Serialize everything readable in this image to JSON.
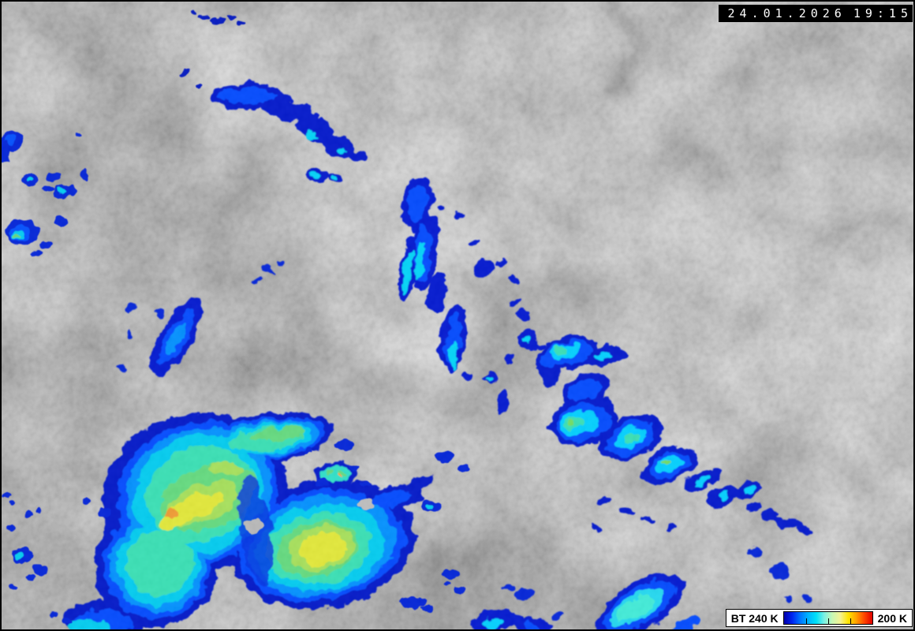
{
  "timestamp": {
    "date": "24.01.2026",
    "time": "19:15"
  },
  "legend": {
    "left_label": "BT 240 K",
    "right_label": "200 K",
    "unit": "K",
    "scale_max_k": 240,
    "scale_min_k": 200,
    "tick_positions_percent": [
      25,
      50,
      75
    ],
    "colorbar_colors": [
      "#0000aa",
      "#0024f0",
      "#0074ff",
      "#00b4ff",
      "#00e0f8",
      "#7cf0e4",
      "#c8f7b4",
      "#f4f294",
      "#ffe400",
      "#ffa000",
      "#ff4600",
      "#e00000"
    ]
  },
  "scene": {
    "base_gray": "#9d9d9d",
    "cloud_white": "#e0e0e0",
    "shadow_gray": "#6b6b6b",
    "enhancement_palette": [
      "#0016c8",
      "#0048ff",
      "#0090ff",
      "#00ccf0",
      "#38e0b4",
      "#6cdc78",
      "#b0e44c",
      "#e2e838",
      "#f09a30"
    ]
  }
}
